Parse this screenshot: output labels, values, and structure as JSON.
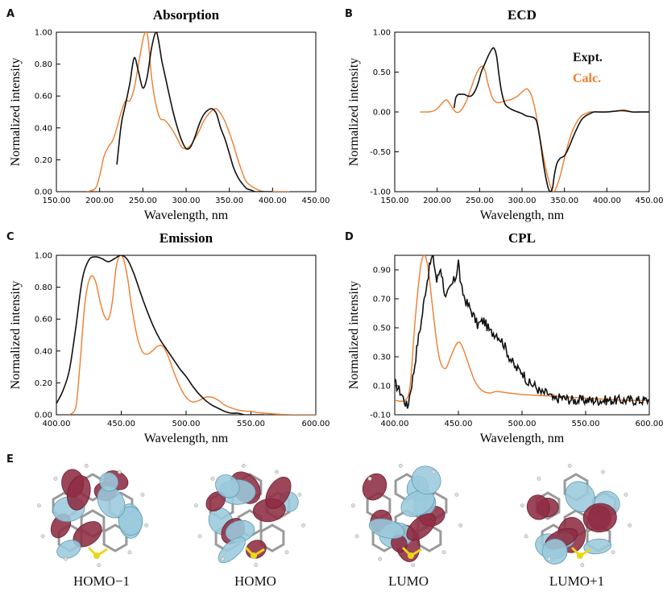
{
  "panel_letters": [
    "A",
    "B",
    "C",
    "D",
    "E"
  ],
  "colors": {
    "expt": "#111111",
    "calc": "#ee7d2f",
    "lobe_pos": "#8e2c43",
    "lobe_neg": "#9bc9dc",
    "bond": "#9a9a9a",
    "sulfur": "#e8d81a"
  },
  "chart_data": [
    {
      "type": "line",
      "title": "Absorption",
      "xlabel": "Wavelength, nm",
      "ylabel": "Normalized intensity",
      "xlim": [
        150,
        450
      ],
      "ylim": [
        0,
        1
      ],
      "xticks": [
        150,
        200,
        250,
        300,
        350,
        400,
        450
      ],
      "xtick_labels": [
        "150.00",
        "200.00",
        "250.00",
        "300.00",
        "350.00",
        "400.00",
        "450.00"
      ],
      "yticks": [
        0,
        0.2,
        0.4,
        0.6,
        0.8,
        1.0
      ],
      "ytick_labels": [
        "0.00",
        "0.20",
        "0.40",
        "0.60",
        "0.80",
        "1.00"
      ],
      "grid": false,
      "series": [
        {
          "key": "expt",
          "x": [
            220,
            225,
            230,
            235,
            240,
            245,
            250,
            255,
            260,
            265,
            268,
            272,
            276,
            280,
            285,
            290,
            295,
            300,
            305,
            310,
            315,
            320,
            325,
            330,
            335,
            340,
            345,
            350,
            355,
            360,
            365,
            370,
            375,
            380,
            385,
            390,
            400
          ],
          "y": [
            0.17,
            0.42,
            0.55,
            0.68,
            0.84,
            0.75,
            0.65,
            0.72,
            0.9,
            1.0,
            0.95,
            0.82,
            0.72,
            0.62,
            0.5,
            0.4,
            0.32,
            0.27,
            0.28,
            0.34,
            0.42,
            0.48,
            0.51,
            0.52,
            0.49,
            0.4,
            0.33,
            0.24,
            0.15,
            0.09,
            0.05,
            0.02,
            0.01,
            0.0,
            0.0,
            0.0,
            0.0
          ]
        },
        {
          "key": "calc",
          "x": [
            185,
            195,
            200,
            205,
            210,
            215,
            220,
            225,
            230,
            235,
            240,
            245,
            250,
            253,
            256,
            260,
            265,
            270,
            275,
            280,
            285,
            290,
            295,
            300,
            305,
            310,
            315,
            320,
            325,
            330,
            335,
            340,
            345,
            350,
            355,
            360,
            365,
            370,
            380,
            390,
            400,
            420
          ],
          "y": [
            0.0,
            0.02,
            0.1,
            0.22,
            0.28,
            0.32,
            0.4,
            0.5,
            0.57,
            0.57,
            0.65,
            0.8,
            0.95,
            1.0,
            0.96,
            0.72,
            0.55,
            0.46,
            0.45,
            0.42,
            0.38,
            0.33,
            0.28,
            0.27,
            0.29,
            0.33,
            0.38,
            0.44,
            0.48,
            0.51,
            0.52,
            0.49,
            0.44,
            0.37,
            0.29,
            0.2,
            0.12,
            0.06,
            0.02,
            0.0,
            0.0,
            0.0
          ]
        }
      ]
    },
    {
      "type": "line",
      "title": "ECD",
      "xlabel": "Wavelength, nm",
      "ylabel": "Normalized intensity",
      "xlim": [
        150,
        450
      ],
      "ylim": [
        -1,
        1
      ],
      "xticks": [
        150,
        200,
        250,
        300,
        350,
        400,
        450
      ],
      "xtick_labels": [
        "150.00",
        "200.00",
        "250.00",
        "300.00",
        "350.00",
        "400.00",
        "450.00"
      ],
      "yticks": [
        -1,
        -0.5,
        0,
        0.5,
        1.0
      ],
      "ytick_labels": [
        "-1.00",
        "-0.50",
        "0.00",
        "0.50",
        "1.00"
      ],
      "grid": false,
      "legend": {
        "placement": "top-right",
        "entries": [
          {
            "key": "expt",
            "label": "Expt."
          },
          {
            "key": "calc",
            "label": "Calc."
          }
        ]
      },
      "series": [
        {
          "key": "expt",
          "x": [
            220,
            222,
            225,
            228,
            232,
            236,
            240,
            244,
            248,
            252,
            256,
            260,
            264,
            267,
            270,
            273,
            276,
            280,
            285,
            290,
            295,
            300,
            305,
            310,
            315,
            318,
            322,
            326,
            330,
            333,
            336,
            338,
            341,
            345,
            350,
            355,
            360,
            365,
            370,
            375,
            380,
            385,
            390,
            400,
            410,
            420,
            430,
            440,
            450
          ],
          "y": [
            0.05,
            0.18,
            0.22,
            0.22,
            0.22,
            0.2,
            0.2,
            0.25,
            0.35,
            0.5,
            0.6,
            0.7,
            0.78,
            0.8,
            0.7,
            0.45,
            0.25,
            0.1,
            0.05,
            0.02,
            0.0,
            -0.02,
            -0.05,
            -0.06,
            -0.08,
            -0.15,
            -0.4,
            -0.7,
            -0.92,
            -1.0,
            -0.95,
            -0.8,
            -0.65,
            -0.58,
            -0.55,
            -0.45,
            -0.32,
            -0.2,
            -0.1,
            -0.05,
            -0.02,
            0.0,
            0.0,
            0.0,
            0.01,
            0.02,
            0.0,
            0.0,
            0.0
          ]
        },
        {
          "key": "calc",
          "x": [
            180,
            190,
            195,
            200,
            205,
            210,
            213,
            218,
            222,
            226,
            230,
            235,
            240,
            245,
            250,
            254,
            257,
            260,
            265,
            270,
            275,
            280,
            285,
            290,
            295,
            300,
            305,
            308,
            312,
            316,
            320,
            325,
            330,
            334,
            337,
            340,
            345,
            350,
            355,
            360,
            365,
            370,
            375,
            380,
            390,
            400,
            410,
            420,
            430,
            450
          ],
          "y": [
            0.0,
            0.0,
            0.01,
            0.04,
            0.1,
            0.15,
            0.13,
            0.05,
            0.0,
            0.0,
            0.05,
            0.15,
            0.3,
            0.45,
            0.55,
            0.57,
            0.5,
            0.35,
            0.18,
            0.12,
            0.12,
            0.14,
            0.15,
            0.17,
            0.2,
            0.25,
            0.29,
            0.27,
            0.18,
            0.0,
            -0.25,
            -0.55,
            -0.8,
            -0.95,
            -1.0,
            -0.96,
            -0.8,
            -0.58,
            -0.38,
            -0.22,
            -0.12,
            -0.05,
            -0.02,
            0.0,
            0.0,
            0.0,
            0.01,
            0.01,
            0.0,
            0.0
          ]
        }
      ]
    },
    {
      "type": "line",
      "title": "Emission",
      "xlabel": "Wavelength, nm",
      "ylabel": "Normalized intensity",
      "xlim": [
        400,
        600
      ],
      "ylim": [
        0,
        1
      ],
      "xticks": [
        400,
        450,
        500,
        550,
        600
      ],
      "xtick_labels": [
        "400.00",
        "450.00",
        "500.00",
        "550.00",
        "600.00"
      ],
      "yticks": [
        0,
        0.2,
        0.4,
        0.6,
        0.8,
        1.0
      ],
      "ytick_labels": [
        "0.00",
        "0.20",
        "0.40",
        "0.60",
        "0.80",
        "1.00"
      ],
      "grid": false,
      "series": [
        {
          "key": "expt",
          "x": [
            400,
            405,
            410,
            415,
            420,
            425,
            430,
            435,
            440,
            445,
            450,
            455,
            460,
            465,
            470,
            475,
            480,
            485,
            490,
            495,
            500,
            505,
            510,
            515,
            520,
            525,
            530,
            535,
            540,
            545,
            550,
            560
          ],
          "y": [
            0.07,
            0.15,
            0.28,
            0.55,
            0.85,
            0.97,
            0.99,
            0.98,
            0.96,
            0.98,
            1.0,
            0.97,
            0.88,
            0.76,
            0.65,
            0.55,
            0.47,
            0.41,
            0.35,
            0.29,
            0.24,
            0.18,
            0.13,
            0.09,
            0.06,
            0.04,
            0.02,
            0.01,
            0.01,
            0.0,
            0.0,
            0.0
          ]
        },
        {
          "key": "calc",
          "x": [
            410,
            415,
            418,
            422,
            426,
            430,
            434,
            437,
            440,
            443,
            446,
            449,
            452,
            455,
            458,
            462,
            466,
            470,
            474,
            478,
            482,
            486,
            490,
            495,
            500,
            505,
            510,
            515,
            520,
            525,
            530,
            540,
            550,
            560,
            580,
            600
          ],
          "y": [
            0.0,
            0.05,
            0.3,
            0.7,
            0.86,
            0.84,
            0.7,
            0.62,
            0.6,
            0.7,
            0.92,
            1.0,
            0.97,
            0.85,
            0.68,
            0.5,
            0.4,
            0.38,
            0.4,
            0.43,
            0.43,
            0.37,
            0.28,
            0.18,
            0.11,
            0.08,
            0.09,
            0.11,
            0.11,
            0.09,
            0.06,
            0.03,
            0.02,
            0.01,
            0.0,
            0.0
          ]
        }
      ]
    },
    {
      "type": "line",
      "title": "CPL",
      "xlabel": "Wavelength, nm",
      "ylabel": "Normalized intensity",
      "xlim": [
        400,
        600
      ],
      "ylim": [
        -0.1,
        1.0
      ],
      "xticks": [
        400,
        450,
        500,
        550,
        600
      ],
      "xtick_labels": [
        "400.00",
        "450.00",
        "500.00",
        "550.00",
        "600.00"
      ],
      "yticks": [
        -0.1,
        0.1,
        0.3,
        0.5,
        0.7,
        0.9
      ],
      "ytick_labels": [
        "-0.10",
        "0.10",
        "0.30",
        "0.50",
        "0.70",
        "0.90"
      ],
      "grid": false,
      "series": [
        {
          "key": "expt",
          "noisy": true,
          "x": [
            400,
            405,
            410,
            415,
            418,
            421,
            424,
            428,
            430,
            433,
            436,
            440,
            444,
            448,
            450,
            452,
            456,
            460,
            465,
            470,
            475,
            480,
            485,
            490,
            495,
            500,
            505,
            510,
            515,
            520,
            525,
            530,
            540,
            550,
            560,
            570,
            580,
            590,
            600
          ],
          "y": [
            0.12,
            0.05,
            -0.05,
            0.2,
            0.4,
            0.55,
            0.75,
            0.95,
            1.0,
            0.82,
            0.92,
            0.7,
            0.78,
            0.85,
            0.96,
            0.78,
            0.68,
            0.62,
            0.52,
            0.55,
            0.47,
            0.46,
            0.4,
            0.3,
            0.22,
            0.2,
            0.12,
            0.1,
            0.05,
            0.05,
            0.0,
            0.02,
            0.0,
            0.0,
            0.0,
            0.0,
            0.0,
            0.0,
            0.0
          ]
        },
        {
          "key": "calc",
          "x": [
            400,
            408,
            412,
            416,
            420,
            423,
            426,
            430,
            433,
            436,
            440,
            444,
            448,
            451,
            454,
            458,
            462,
            466,
            470,
            475,
            480,
            490,
            500,
            520,
            540,
            560,
            580,
            600
          ],
          "y": [
            0.0,
            0.0,
            0.1,
            0.55,
            0.9,
            1.0,
            0.92,
            0.62,
            0.4,
            0.26,
            0.22,
            0.3,
            0.38,
            0.4,
            0.35,
            0.25,
            0.15,
            0.09,
            0.06,
            0.05,
            0.06,
            0.05,
            0.04,
            0.03,
            0.02,
            0.01,
            0.0,
            0.0
          ]
        }
      ]
    }
  ],
  "orbitals": [
    {
      "label": "HOMO−1"
    },
    {
      "label": "HOMO"
    },
    {
      "label": "LUMO"
    },
    {
      "label": "LUMO+1"
    }
  ]
}
